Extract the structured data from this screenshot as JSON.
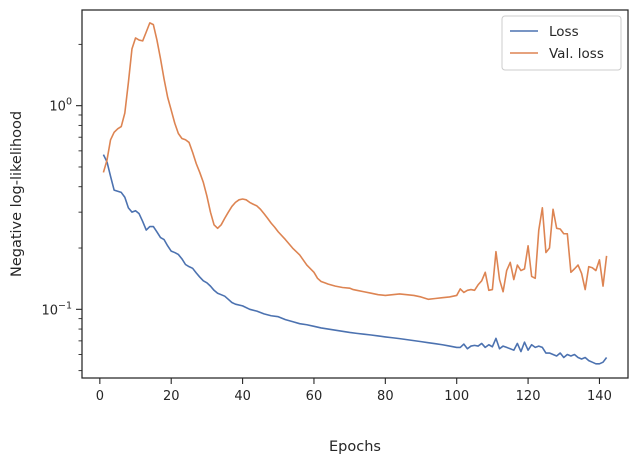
{
  "chart_data": {
    "type": "line",
    "title": "",
    "xlabel": "Epochs",
    "ylabel": "Negative log-likelihood",
    "xlim": [
      -5,
      148
    ],
    "ylim": [
      0.046,
      2.95
    ],
    "yscale": "log",
    "grid": false,
    "legend_position": "top-right",
    "x_ticks": [
      0,
      20,
      40,
      60,
      80,
      100,
      120,
      140
    ],
    "x_tick_labels": [
      "0",
      "20",
      "40",
      "60",
      "80",
      "100",
      "120",
      "140"
    ],
    "y_major_ticks": [
      0.1,
      1
    ],
    "y_major_tick_labels": [
      "10",
      "10"
    ],
    "y_major_tick_exponents": [
      "−1",
      "0"
    ],
    "y_minor_ticks": [
      0.05,
      0.06,
      0.07,
      0.08,
      0.09,
      0.2,
      0.3,
      0.4,
      0.5,
      0.6,
      0.7,
      0.8,
      0.9,
      2
    ],
    "series": [
      {
        "name": "Loss",
        "color": "#4c72b0",
        "points": [
          [
            1,
            0.575
          ],
          [
            2,
            0.53
          ],
          [
            3,
            0.45
          ],
          [
            4,
            0.385
          ],
          [
            5,
            0.38
          ],
          [
            6,
            0.375
          ],
          [
            7,
            0.355
          ],
          [
            8,
            0.315
          ],
          [
            9,
            0.3
          ],
          [
            10,
            0.305
          ],
          [
            11,
            0.295
          ],
          [
            12,
            0.27
          ],
          [
            13,
            0.245
          ],
          [
            14,
            0.255
          ],
          [
            15,
            0.255
          ],
          [
            16,
            0.24
          ],
          [
            17,
            0.225
          ],
          [
            18,
            0.22
          ],
          [
            19,
            0.205
          ],
          [
            20,
            0.193
          ],
          [
            21,
            0.19
          ],
          [
            22,
            0.186
          ],
          [
            23,
            0.177
          ],
          [
            24,
            0.166
          ],
          [
            25,
            0.162
          ],
          [
            26,
            0.159
          ],
          [
            27,
            0.151
          ],
          [
            28,
            0.144
          ],
          [
            29,
            0.138
          ],
          [
            30,
            0.135
          ],
          [
            31,
            0.13
          ],
          [
            32,
            0.124
          ],
          [
            33,
            0.12
          ],
          [
            34,
            0.118
          ],
          [
            35,
            0.116
          ],
          [
            36,
            0.112
          ],
          [
            37,
            0.108
          ],
          [
            38,
            0.106
          ],
          [
            40,
            0.104
          ],
          [
            42,
            0.1
          ],
          [
            44,
            0.098
          ],
          [
            46,
            0.095
          ],
          [
            48,
            0.093
          ],
          [
            50,
            0.092
          ],
          [
            52,
            0.089
          ],
          [
            54,
            0.087
          ],
          [
            56,
            0.085
          ],
          [
            58,
            0.084
          ],
          [
            60,
            0.0825
          ],
          [
            62,
            0.081
          ],
          [
            64,
            0.08
          ],
          [
            66,
            0.079
          ],
          [
            68,
            0.078
          ],
          [
            70,
            0.077
          ],
          [
            72,
            0.0762
          ],
          [
            74,
            0.0755
          ],
          [
            76,
            0.0748
          ],
          [
            78,
            0.074
          ],
          [
            80,
            0.0732
          ],
          [
            82,
            0.0725
          ],
          [
            84,
            0.0718
          ],
          [
            86,
            0.071
          ],
          [
            88,
            0.0702
          ],
          [
            90,
            0.0694
          ],
          [
            92,
            0.0686
          ],
          [
            94,
            0.0678
          ],
          [
            96,
            0.067
          ],
          [
            98,
            0.066
          ],
          [
            100,
            0.065
          ],
          [
            101,
            0.065
          ],
          [
            102,
            0.0675
          ],
          [
            103,
            0.064
          ],
          [
            104,
            0.066
          ],
          [
            105,
            0.0665
          ],
          [
            106,
            0.066
          ],
          [
            107,
            0.068
          ],
          [
            108,
            0.065
          ],
          [
            109,
            0.067
          ],
          [
            110,
            0.0655
          ],
          [
            111,
            0.072
          ],
          [
            112,
            0.064
          ],
          [
            113,
            0.066
          ],
          [
            114,
            0.065
          ],
          [
            115,
            0.064
          ],
          [
            116,
            0.063
          ],
          [
            117,
            0.068
          ],
          [
            118,
            0.062
          ],
          [
            119,
            0.069
          ],
          [
            120,
            0.063
          ],
          [
            121,
            0.067
          ],
          [
            122,
            0.065
          ],
          [
            123,
            0.066
          ],
          [
            124,
            0.065
          ],
          [
            125,
            0.061
          ],
          [
            126,
            0.061
          ],
          [
            127,
            0.06
          ],
          [
            128,
            0.059
          ],
          [
            129,
            0.061
          ],
          [
            130,
            0.058
          ],
          [
            131,
            0.06
          ],
          [
            132,
            0.059
          ],
          [
            133,
            0.06
          ],
          [
            134,
            0.058
          ],
          [
            135,
            0.057
          ],
          [
            136,
            0.058
          ],
          [
            137,
            0.056
          ],
          [
            138,
            0.055
          ],
          [
            139,
            0.054
          ],
          [
            140,
            0.054
          ],
          [
            141,
            0.055
          ],
          [
            142,
            0.058
          ]
        ]
      },
      {
        "name": "Val. loss",
        "color": "#dd8452",
        "points": [
          [
            1,
            0.47
          ],
          [
            2,
            0.54
          ],
          [
            3,
            0.68
          ],
          [
            4,
            0.74
          ],
          [
            5,
            0.77
          ],
          [
            6,
            0.79
          ],
          [
            7,
            0.92
          ],
          [
            8,
            1.3
          ],
          [
            9,
            1.9
          ],
          [
            10,
            2.15
          ],
          [
            11,
            2.1
          ],
          [
            12,
            2.08
          ],
          [
            13,
            2.3
          ],
          [
            14,
            2.55
          ],
          [
            15,
            2.5
          ],
          [
            16,
            2.1
          ],
          [
            17,
            1.7
          ],
          [
            18,
            1.35
          ],
          [
            19,
            1.1
          ],
          [
            20,
            0.95
          ],
          [
            21,
            0.82
          ],
          [
            22,
            0.73
          ],
          [
            23,
            0.69
          ],
          [
            24,
            0.68
          ],
          [
            25,
            0.66
          ],
          [
            26,
            0.59
          ],
          [
            27,
            0.52
          ],
          [
            28,
            0.47
          ],
          [
            29,
            0.42
          ],
          [
            30,
            0.36
          ],
          [
            31,
            0.3
          ],
          [
            32,
            0.26
          ],
          [
            33,
            0.25
          ],
          [
            34,
            0.26
          ],
          [
            35,
            0.28
          ],
          [
            36,
            0.3
          ],
          [
            37,
            0.32
          ],
          [
            38,
            0.335
          ],
          [
            39,
            0.345
          ],
          [
            40,
            0.348
          ],
          [
            41,
            0.345
          ],
          [
            42,
            0.335
          ],
          [
            43,
            0.328
          ],
          [
            44,
            0.322
          ],
          [
            45,
            0.31
          ],
          [
            46,
            0.295
          ],
          [
            47,
            0.28
          ],
          [
            48,
            0.265
          ],
          [
            49,
            0.253
          ],
          [
            50,
            0.24
          ],
          [
            52,
            0.22
          ],
          [
            54,
            0.2
          ],
          [
            56,
            0.185
          ],
          [
            58,
            0.165
          ],
          [
            60,
            0.152
          ],
          [
            61,
            0.142
          ],
          [
            62,
            0.137
          ],
          [
            63,
            0.135
          ],
          [
            64,
            0.133
          ],
          [
            66,
            0.13
          ],
          [
            68,
            0.128
          ],
          [
            70,
            0.127
          ],
          [
            71,
            0.125
          ],
          [
            72,
            0.124
          ],
          [
            74,
            0.122
          ],
          [
            76,
            0.12
          ],
          [
            78,
            0.118
          ],
          [
            80,
            0.117
          ],
          [
            82,
            0.118
          ],
          [
            84,
            0.119
          ],
          [
            86,
            0.118
          ],
          [
            88,
            0.117
          ],
          [
            90,
            0.115
          ],
          [
            92,
            0.112
          ],
          [
            94,
            0.113
          ],
          [
            96,
            0.114
          ],
          [
            98,
            0.115
          ],
          [
            100,
            0.117
          ],
          [
            101,
            0.126
          ],
          [
            102,
            0.121
          ],
          [
            103,
            0.124
          ],
          [
            104,
            0.125
          ],
          [
            105,
            0.124
          ],
          [
            106,
            0.132
          ],
          [
            107,
            0.138
          ],
          [
            108,
            0.152
          ],
          [
            109,
            0.124
          ],
          [
            110,
            0.125
          ],
          [
            111,
            0.192
          ],
          [
            112,
            0.14
          ],
          [
            113,
            0.122
          ],
          [
            114,
            0.155
          ],
          [
            115,
            0.17
          ],
          [
            116,
            0.14
          ],
          [
            117,
            0.165
          ],
          [
            118,
            0.155
          ],
          [
            119,
            0.158
          ],
          [
            120,
            0.205
          ],
          [
            121,
            0.145
          ],
          [
            122,
            0.142
          ],
          [
            123,
            0.245
          ],
          [
            124,
            0.315
          ],
          [
            125,
            0.19
          ],
          [
            126,
            0.2
          ],
          [
            127,
            0.31
          ],
          [
            128,
            0.25
          ],
          [
            129,
            0.248
          ],
          [
            130,
            0.235
          ],
          [
            131,
            0.235
          ],
          [
            132,
            0.152
          ],
          [
            133,
            0.158
          ],
          [
            134,
            0.165
          ],
          [
            135,
            0.15
          ],
          [
            136,
            0.125
          ],
          [
            137,
            0.162
          ],
          [
            138,
            0.16
          ],
          [
            139,
            0.155
          ],
          [
            140,
            0.175
          ],
          [
            141,
            0.13
          ],
          [
            142,
            0.183
          ]
        ]
      }
    ]
  }
}
